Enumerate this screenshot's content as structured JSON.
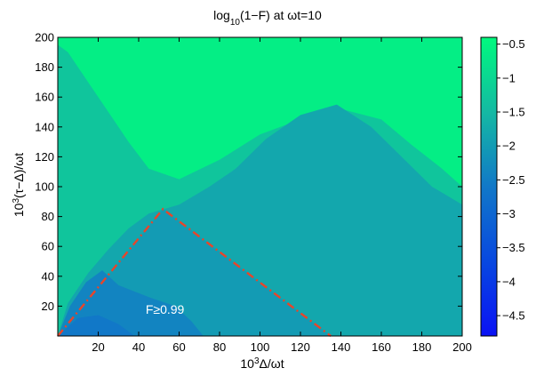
{
  "chart_data": {
    "type": "heatmap",
    "title": {
      "prefix": "log",
      "subscript": "10",
      "suffix": "(1−F) at ωt=10"
    },
    "xlabel": {
      "prefix": "10",
      "superscript": "3",
      "suffix": "Δ/ωt"
    },
    "ylabel": {
      "prefix": "10",
      "superscript": "3",
      "suffix": "(τ−Δ)/ωt"
    },
    "xlim": [
      0,
      200
    ],
    "ylim": [
      0,
      200
    ],
    "x_ticks": [
      20,
      40,
      60,
      80,
      100,
      120,
      140,
      160,
      180,
      200
    ],
    "y_ticks": [
      20,
      40,
      60,
      80,
      100,
      120,
      140,
      160,
      180,
      200
    ],
    "colorbar": {
      "range": [
        -4.8,
        -0.4
      ],
      "ticks": [
        "-0.5",
        "-1",
        "-1.5",
        "-2",
        "-2.5",
        "-3",
        "-3.5",
        "-4",
        "-4.5"
      ],
      "tick_values": [
        -0.5,
        -1,
        -1.5,
        -2,
        -2.5,
        -3,
        -3.5,
        -4,
        -4.5
      ]
    },
    "regions": [
      {
        "level": -0.6,
        "description": "background",
        "polygon": [
          [
            0,
            0
          ],
          [
            200,
            0
          ],
          [
            200,
            200
          ],
          [
            0,
            200
          ]
        ]
      },
      {
        "level": -1.3,
        "polygon": [
          [
            0,
            0
          ],
          [
            200,
            0
          ],
          [
            200,
            100
          ],
          [
            190,
            112
          ],
          [
            175,
            128
          ],
          [
            160,
            145
          ],
          [
            140,
            152
          ],
          [
            120,
            145
          ],
          [
            100,
            135
          ],
          [
            80,
            118
          ],
          [
            60,
            105
          ],
          [
            45,
            112
          ],
          [
            35,
            130
          ],
          [
            25,
            150
          ],
          [
            15,
            170
          ],
          [
            5,
            190
          ],
          [
            0,
            195
          ]
        ]
      },
      {
        "level": -1.8,
        "polygon": [
          [
            0,
            0
          ],
          [
            200,
            0
          ],
          [
            200,
            88
          ],
          [
            185,
            100
          ],
          [
            170,
            120
          ],
          [
            155,
            140
          ],
          [
            138,
            155
          ],
          [
            120,
            148
          ],
          [
            103,
            132
          ],
          [
            88,
            112
          ],
          [
            75,
            100
          ],
          [
            60,
            88
          ],
          [
            45,
            82
          ],
          [
            35,
            72
          ],
          [
            25,
            58
          ],
          [
            15,
            42
          ],
          [
            5,
            22
          ]
        ]
      },
      {
        "level": -2.0,
        "polygon": [
          [
            0,
            0
          ],
          [
            135,
            0
          ],
          [
            52,
            85
          ],
          [
            0,
            0
          ]
        ]
      },
      {
        "level": -2.4,
        "polygon": [
          [
            0,
            0
          ],
          [
            72,
            0
          ],
          [
            66,
            10
          ],
          [
            58,
            20
          ],
          [
            45,
            26
          ],
          [
            30,
            34
          ],
          [
            22,
            44
          ],
          [
            14,
            36
          ],
          [
            6,
            20
          ]
        ]
      },
      {
        "level": -2.6,
        "polygon": [
          [
            0,
            0
          ],
          [
            38,
            0
          ],
          [
            30,
            8
          ],
          [
            20,
            14
          ],
          [
            10,
            12
          ]
        ]
      }
    ],
    "annotation": {
      "text": "F≥0.99",
      "x": 53,
      "y": 18
    },
    "boundary": {
      "style": "dash-dot",
      "color": "#e8452a",
      "points": [
        [
          0,
          0
        ],
        [
          52,
          85
        ],
        [
          135,
          0
        ]
      ]
    }
  }
}
